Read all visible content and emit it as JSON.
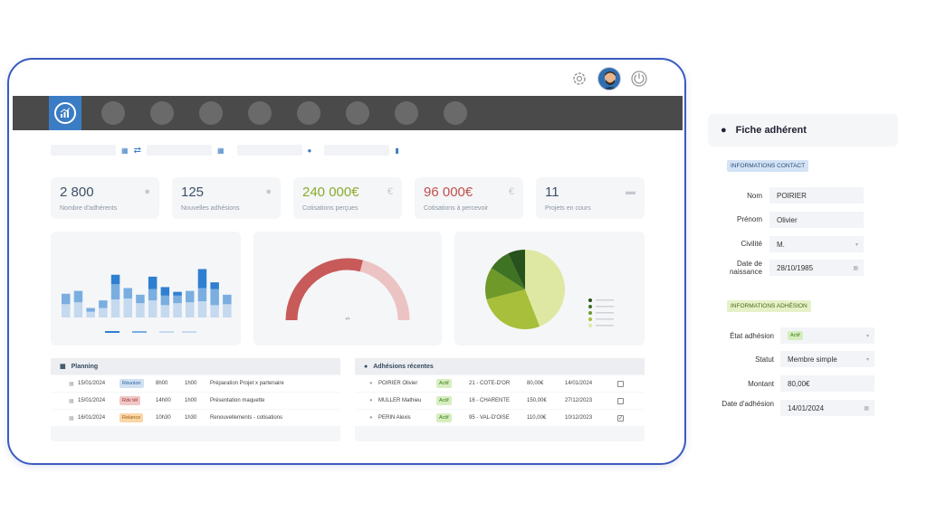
{
  "kpis": [
    {
      "value": "2 800",
      "label": "Nombre d'adhérents",
      "color": "#3d5166",
      "icon": "user-icon"
    },
    {
      "value": "125",
      "label": "Nouvelles adhésions",
      "color": "#3d5166",
      "icon": "user-icon"
    },
    {
      "value": "240 000€",
      "label": "Cotisations perçues",
      "color": "#8bab2e",
      "icon": "euro-icon"
    },
    {
      "value": "96 000€",
      "label": "Cotisations à percevoir",
      "color": "#c0504d",
      "icon": "euro-icon"
    },
    {
      "value": "11",
      "label": "Projets en cours",
      "color": "#3d5166",
      "icon": "folder-icon"
    }
  ],
  "chart_data": [
    {
      "type": "bar",
      "stacked": true,
      "series": [
        {
          "values": [
            14,
            16,
            6,
            10,
            19,
            20,
            15,
            18,
            13,
            15,
            16,
            17,
            13,
            14
          ],
          "color": "#c5d9ef"
        },
        {
          "values": [
            11,
            12,
            4,
            8,
            16,
            11,
            9,
            12,
            10,
            8,
            12,
            14,
            17,
            10
          ],
          "color": "#7aaee0"
        },
        {
          "values": [
            0,
            0,
            0,
            0,
            10,
            0,
            0,
            13,
            9,
            4,
            0,
            20,
            7,
            0
          ],
          "color": "#2e7fd0"
        }
      ]
    },
    {
      "type": "gauge",
      "value": 0.58,
      "colors": [
        "#c85a5a",
        "#ecc3c3"
      ],
      "label": "•/•"
    },
    {
      "type": "pie",
      "values": [
        44,
        27,
        13,
        9,
        7
      ],
      "colors": [
        "#dfe8a3",
        "#a7bf3a",
        "#6f9a2a",
        "#3f7324",
        "#27521b"
      ]
    }
  ],
  "planning": {
    "title": "Planning",
    "rows": [
      {
        "date": "15/01/2024",
        "tag": "Réunion",
        "tag_class": "t-blue",
        "start": "8h00",
        "dur": "1h00",
        "label": "Préparation Projet x partenaire"
      },
      {
        "date": "15/01/2024",
        "tag": "Rdv tél",
        "tag_class": "t-red",
        "start": "14h00",
        "dur": "1h00",
        "label": "Présentation maquette"
      },
      {
        "date": "16/01/2024",
        "tag": "Relance",
        "tag_class": "t-orange",
        "start": "10h30",
        "dur": "1h30",
        "label": "Renouvellements - cotisations"
      }
    ]
  },
  "adhesions": {
    "title": "Adhésions récentes",
    "rows": [
      {
        "name": "POIRIER Olivier",
        "status": "Actif",
        "dept": "21 - COTE-D'OR",
        "amount": "80,00€",
        "date": "14/01/2024",
        "check": ""
      },
      {
        "name": "MULLER Mathieu",
        "status": "Actif",
        "dept": "16 - CHARENTE",
        "amount": "150,00€",
        "date": "27/12/2023",
        "check": ""
      },
      {
        "name": "PERIN Alexis",
        "status": "Actif",
        "dept": "95 - VAL-D'OISE",
        "amount": "110,00€",
        "date": "10/12/2023",
        "check": "✓"
      }
    ]
  },
  "fiche": {
    "title": "Fiche adhérent",
    "contact_section": "INFORMATIONS CONTACT",
    "nom_label": "Nom",
    "nom": "POIRIER",
    "prenom_label": "Prénom",
    "prenom": "Olivier",
    "civilite_label": "Civilité",
    "civilite": "M.",
    "naissance_label": "Date de naissance",
    "naissance": "28/10/1985",
    "adhesion_section": "INFORMATIONS ADHÉSION",
    "etat_label": "État adhésion",
    "etat": "Actif",
    "statut_label": "Statut",
    "statut": "Membre simple",
    "montant_label": "Montant",
    "montant": "80,00€",
    "date_label": "Date d'adhésion",
    "date": "14/01/2024"
  }
}
